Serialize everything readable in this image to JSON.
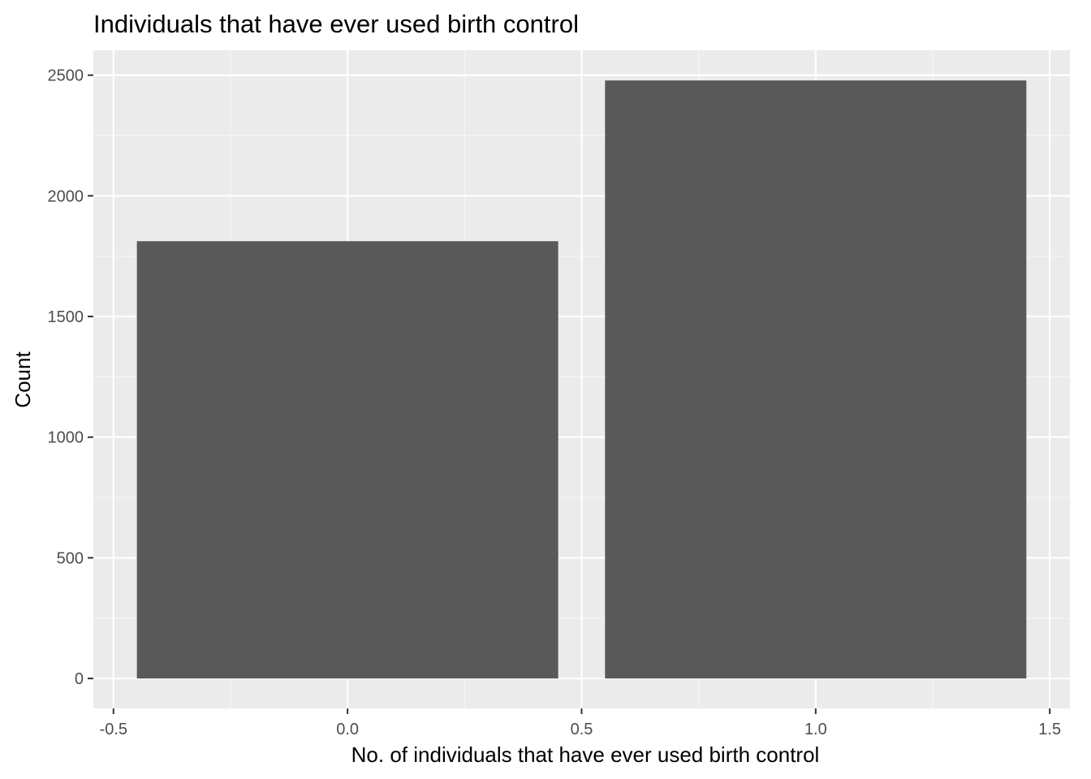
{
  "chart_data": {
    "type": "bar",
    "title": "Individuals that have ever used  birth control",
    "xlabel": "No. of individuals that have ever used birth control",
    "ylabel": "Count",
    "x": [
      0,
      1
    ],
    "values": [
      1812,
      2478
    ],
    "bar_width": 0.9,
    "xlim": [
      -0.543,
      1.543
    ],
    "ylim": [
      -124,
      2603
    ],
    "xticks": [
      -0.5,
      0.0,
      0.5,
      1.0,
      1.5
    ],
    "xtick_labels": [
      "-0.5",
      "0.0",
      "0.5",
      "1.0",
      "1.5"
    ],
    "yticks": [
      0,
      500,
      1000,
      1500,
      2000,
      2500
    ],
    "ytick_labels": [
      "0",
      "500",
      "1000",
      "1500",
      "2000",
      "2500"
    ],
    "grid": true,
    "legend": "none",
    "colors": {
      "bar": "#595959",
      "panel": "#ebebeb",
      "grid_major": "#ffffff",
      "grid_minor": "#f5f5f5",
      "tick_text": "#4d4d4d"
    }
  }
}
